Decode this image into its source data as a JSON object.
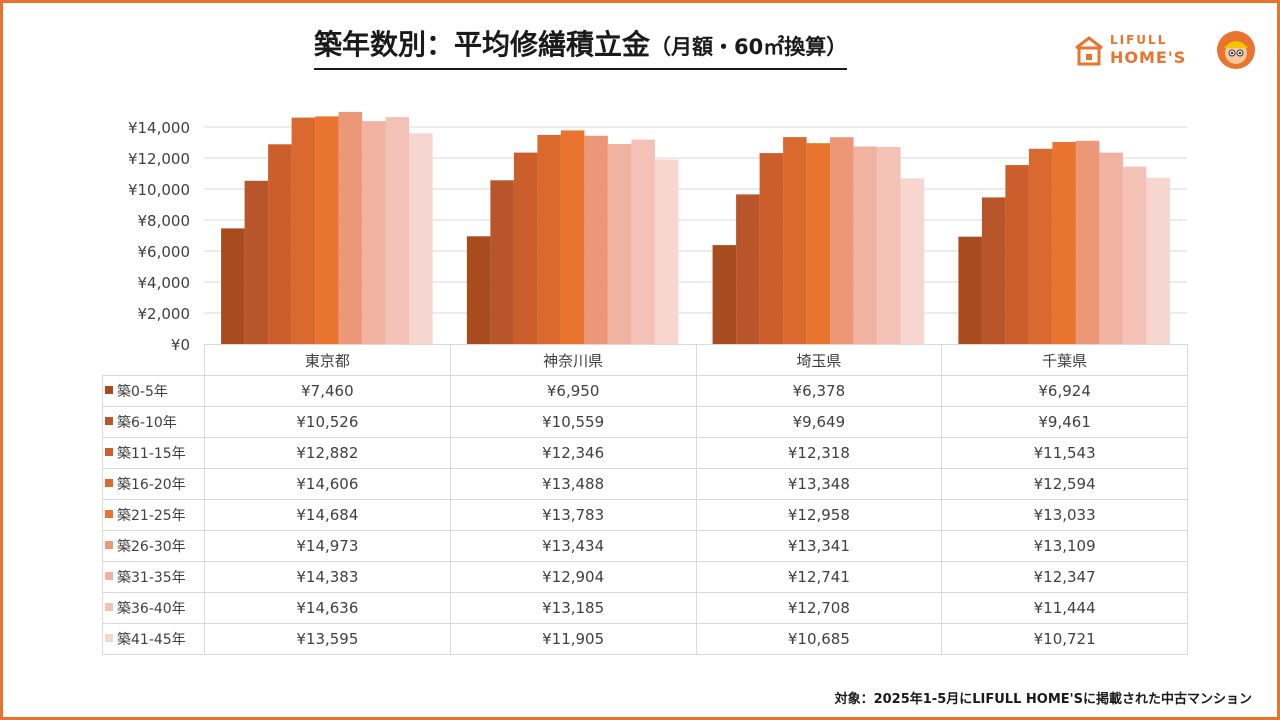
{
  "title": {
    "main": "築年数別：平均修繕積立金",
    "sub": "（月額・60㎡換算）"
  },
  "logo": {
    "line1": "LIFULL",
    "line2": "HOME'S"
  },
  "footnote": "対象：2025年1-5月にLIFULL HOME'Sに掲載された中古マンション",
  "colors": {
    "frame": "#e8742f",
    "grid": "#d9d9d9",
    "series": [
      "#a84b1e",
      "#b9552a",
      "#cc5e2b",
      "#d9692e",
      "#e8742f",
      "#ec9778",
      "#f0b2a1",
      "#f3c1b6",
      "#f6d6ce"
    ]
  },
  "chart_data": {
    "type": "bar",
    "title": "築年数別：平均修繕積立金（月額・60㎡換算）",
    "categories": [
      "東京都",
      "神奈川県",
      "埼玉県",
      "千葉県"
    ],
    "ylim": [
      0,
      14000
    ],
    "yticks": [
      "¥0",
      "¥2,000",
      "¥4,000",
      "¥6,000",
      "¥8,000",
      "¥10,000",
      "¥12,000",
      "¥14,000"
    ],
    "ytick_values": [
      0,
      2000,
      4000,
      6000,
      8000,
      10000,
      12000,
      14000
    ],
    "grid": true,
    "series": [
      {
        "name": "築0-5年",
        "values": [
          7460,
          6950,
          6378,
          6924
        ],
        "labels": [
          "¥7,460",
          "¥6,950",
          "¥6,378",
          "¥6,924"
        ]
      },
      {
        "name": "築6-10年",
        "values": [
          10526,
          10559,
          9649,
          9461
        ],
        "labels": [
          "¥10,526",
          "¥10,559",
          "¥9,649",
          "¥9,461"
        ]
      },
      {
        "name": "築11-15年",
        "values": [
          12882,
          12346,
          12318,
          11543
        ],
        "labels": [
          "¥12,882",
          "¥12,346",
          "¥12,318",
          "¥11,543"
        ]
      },
      {
        "name": "築16-20年",
        "values": [
          14606,
          13488,
          13348,
          12594
        ],
        "labels": [
          "¥14,606",
          "¥13,488",
          "¥13,348",
          "¥12,594"
        ]
      },
      {
        "name": "築21-25年",
        "values": [
          14684,
          13783,
          12958,
          13033
        ],
        "labels": [
          "¥14,684",
          "¥13,783",
          "¥12,958",
          "¥13,033"
        ]
      },
      {
        "name": "築26-30年",
        "values": [
          14973,
          13434,
          13341,
          13109
        ],
        "labels": [
          "¥14,973",
          "¥13,434",
          "¥13,341",
          "¥13,109"
        ]
      },
      {
        "name": "築31-35年",
        "values": [
          14383,
          12904,
          12741,
          12347
        ],
        "labels": [
          "¥14,383",
          "¥12,904",
          "¥12,741",
          "¥12,347"
        ]
      },
      {
        "name": "築36-40年",
        "values": [
          14636,
          13185,
          12708,
          11444
        ],
        "labels": [
          "¥14,636",
          "¥13,185",
          "¥12,708",
          "¥11,444"
        ]
      },
      {
        "name": "築41-45年",
        "values": [
          13595,
          11905,
          10685,
          10721
        ],
        "labels": [
          "¥13,595",
          "¥11,905",
          "¥10,685",
          "¥10,721"
        ]
      }
    ]
  }
}
